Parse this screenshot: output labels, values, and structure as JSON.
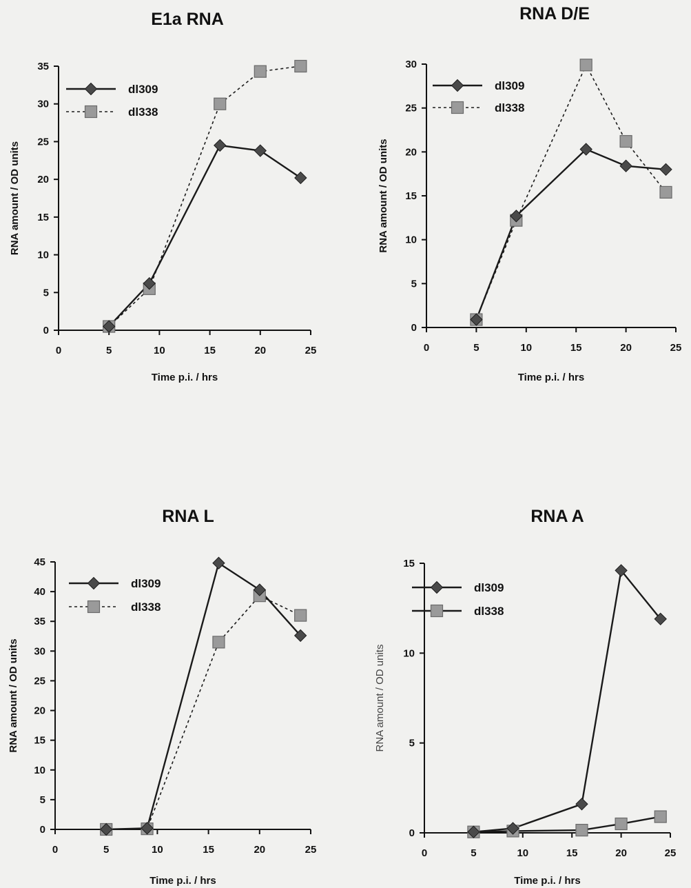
{
  "chart_data": [
    {
      "type": "line",
      "title": "E1a RNA",
      "xlabel": "Time p.i. / hrs",
      "ylabel": "RNA amount / OD units",
      "xlim": [
        0,
        25
      ],
      "ylim": [
        0,
        35
      ],
      "xticks": [
        0,
        5,
        10,
        15,
        20,
        25
      ],
      "yticks": [
        0,
        5,
        10,
        15,
        20,
        25,
        30,
        35
      ],
      "legend_position": "top-left",
      "series": [
        {
          "name": "dl309",
          "marker": "diamond",
          "line": "solid",
          "color": "#2e2e2e",
          "x": [
            5,
            9,
            16,
            20,
            24
          ],
          "y": [
            0.5,
            6.2,
            24.5,
            23.8,
            20.2
          ]
        },
        {
          "name": "dl338",
          "marker": "square",
          "line": "dotted",
          "color": "#8a8a8a",
          "x": [
            5,
            9,
            16,
            20,
            24
          ],
          "y": [
            0.5,
            5.5,
            30.0,
            34.3,
            35.0
          ]
        }
      ]
    },
    {
      "type": "line",
      "title": "RNA D/E",
      "xlabel": "Time p.i. / hrs",
      "ylabel": "RNA amount / OD units",
      "xlim": [
        0,
        25
      ],
      "ylim": [
        0,
        30
      ],
      "xticks": [
        0,
        5,
        10,
        15,
        20,
        25
      ],
      "yticks": [
        0,
        5,
        10,
        15,
        20,
        25,
        30
      ],
      "legend_position": "top-left",
      "series": [
        {
          "name": "dl309",
          "marker": "diamond",
          "line": "solid",
          "color": "#2e2e2e",
          "x": [
            5,
            9,
            16,
            20,
            24
          ],
          "y": [
            0.9,
            12.7,
            20.3,
            18.4,
            18.0
          ]
        },
        {
          "name": "dl338",
          "marker": "square",
          "line": "dotted",
          "color": "#8a8a8a",
          "x": [
            5,
            9,
            16,
            20,
            24
          ],
          "y": [
            0.9,
            12.2,
            29.9,
            21.2,
            15.4
          ]
        }
      ]
    },
    {
      "type": "line",
      "title": "RNA L",
      "xlabel": "Time p.i. / hrs",
      "ylabel": "RNA amount / OD units",
      "xlim": [
        0,
        25
      ],
      "ylim": [
        0,
        45
      ],
      "xticks": [
        0,
        5,
        10,
        15,
        20,
        25
      ],
      "yticks": [
        0,
        5,
        10,
        15,
        20,
        25,
        30,
        35,
        40,
        45
      ],
      "legend_position": "top-left",
      "series": [
        {
          "name": "dl309",
          "marker": "diamond",
          "line": "solid",
          "color": "#2e2e2e",
          "x": [
            5,
            9,
            16,
            20,
            24
          ],
          "y": [
            0,
            0.2,
            44.8,
            40.3,
            32.6
          ]
        },
        {
          "name": "dl338",
          "marker": "square",
          "line": "dotted",
          "color": "#8a8a8a",
          "x": [
            5,
            9,
            16,
            20,
            24
          ],
          "y": [
            0,
            0.1,
            31.5,
            39.3,
            36.0
          ]
        }
      ]
    },
    {
      "type": "line",
      "title": "RNA A",
      "xlabel": "Time p.i. /  hrs",
      "ylabel": "RNA amount  /  OD units",
      "xlim": [
        0,
        25
      ],
      "ylim": [
        0,
        15
      ],
      "xticks": [
        0,
        5,
        10,
        15,
        20,
        25
      ],
      "yticks": [
        0,
        5,
        10,
        15
      ],
      "legend_position": "top-left",
      "series": [
        {
          "name": "dl309",
          "marker": "diamond",
          "line": "solid",
          "color": "#2e2e2e",
          "x": [
            5,
            9,
            16,
            20,
            24
          ],
          "y": [
            0.05,
            0.25,
            1.6,
            14.6,
            11.9
          ]
        },
        {
          "name": "dl338",
          "marker": "square",
          "line": "solid",
          "color": "#8a8a8a",
          "x": [
            5,
            9,
            16,
            20,
            24
          ],
          "y": [
            0.05,
            0.1,
            0.15,
            0.5,
            0.9
          ]
        }
      ]
    }
  ]
}
